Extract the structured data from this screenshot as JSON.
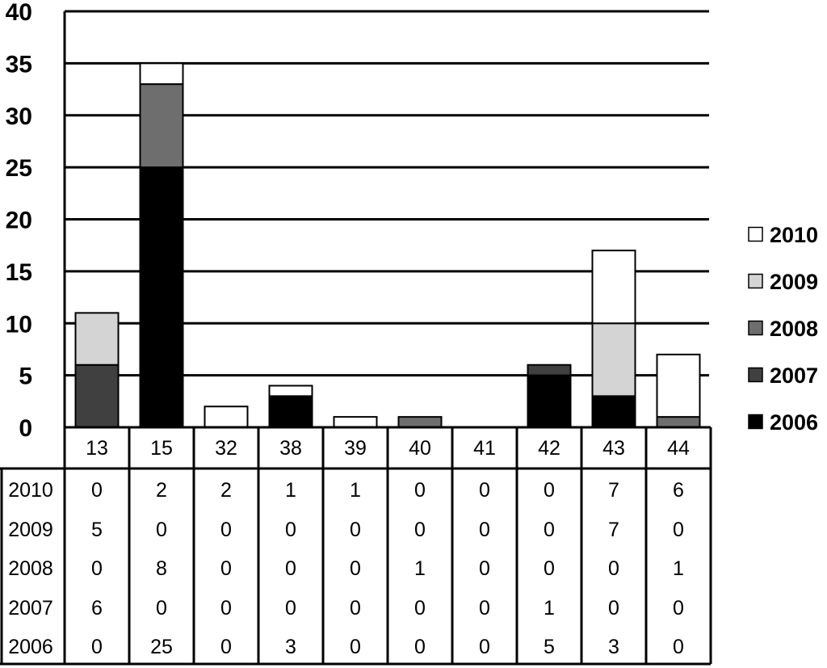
{
  "chart_data": {
    "type": "bar",
    "stacked": true,
    "categories": [
      "13",
      "15",
      "32",
      "38",
      "39",
      "40",
      "41",
      "42",
      "43",
      "44"
    ],
    "series": [
      {
        "name": "2006",
        "color": "#000000",
        "values": [
          0,
          25,
          0,
          3,
          0,
          0,
          0,
          5,
          3,
          0
        ]
      },
      {
        "name": "2007",
        "color": "#404040",
        "values": [
          6,
          0,
          0,
          0,
          0,
          0,
          0,
          1,
          0,
          0
        ]
      },
      {
        "name": "2008",
        "color": "#6e6e6e",
        "values": [
          0,
          8,
          0,
          0,
          0,
          1,
          0,
          0,
          0,
          1
        ]
      },
      {
        "name": "2009",
        "color": "#d4d4d4",
        "values": [
          5,
          0,
          0,
          0,
          0,
          0,
          0,
          0,
          7,
          0
        ]
      },
      {
        "name": "2010",
        "color": "#ffffff",
        "values": [
          0,
          2,
          2,
          1,
          1,
          0,
          0,
          0,
          7,
          6
        ]
      }
    ],
    "ylim": [
      0,
      40
    ],
    "yticks": [
      "0",
      "5",
      "10",
      "15",
      "20",
      "25",
      "30",
      "35",
      "40"
    ],
    "grid": true,
    "legend": "right",
    "data_table": true,
    "table_row_order": [
      "2010",
      "2009",
      "2008",
      "2007",
      "2006"
    ],
    "title": "",
    "xlabel": "",
    "ylabel": ""
  }
}
